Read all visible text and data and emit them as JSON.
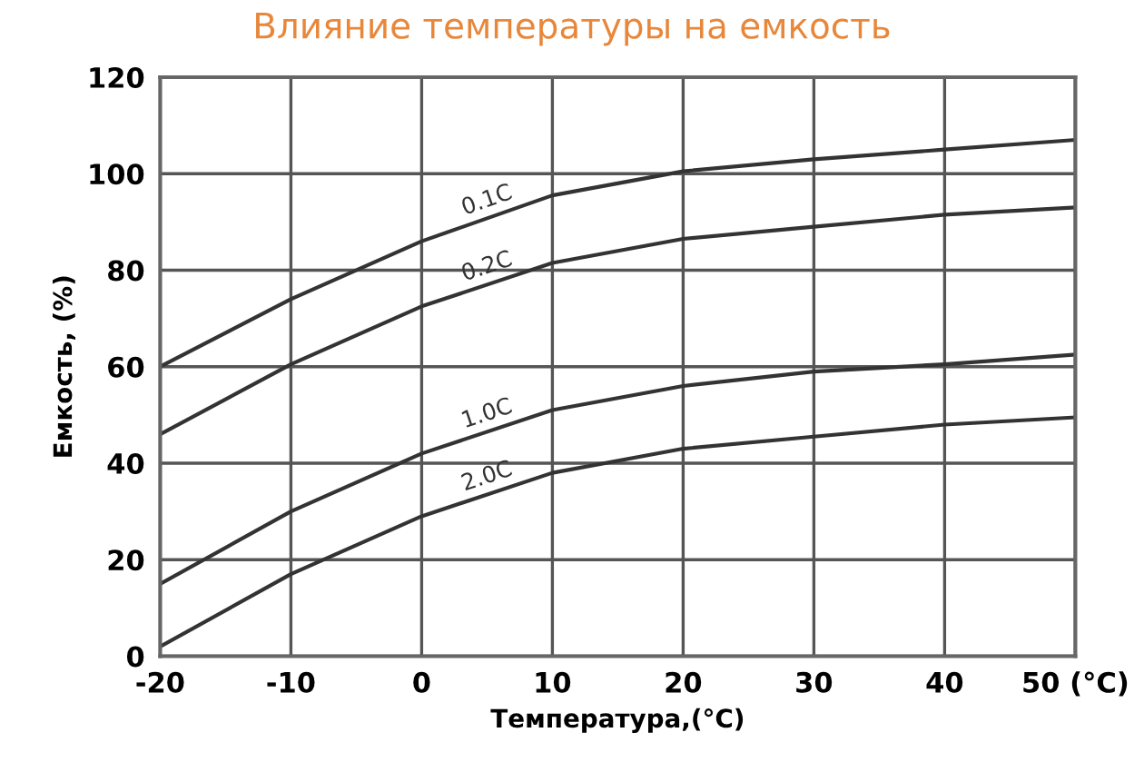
{
  "chart_data": {
    "type": "line",
    "title": "Влияние температуры на емкость",
    "xlabel": "Температура,(°C)",
    "ylabel": "Емкость, (%)",
    "x": [
      -20,
      -10,
      0,
      10,
      20,
      30,
      40,
      50
    ],
    "series": [
      {
        "name": "0.1C",
        "color": "#333333",
        "values": [
          60,
          74,
          86,
          95.5,
          100.5,
          103,
          105,
          107
        ]
      },
      {
        "name": "0.2C",
        "color": "#333333",
        "values": [
          46,
          60.5,
          72.5,
          81.5,
          86.5,
          89,
          91.5,
          93
        ]
      },
      {
        "name": "1.0C",
        "color": "#333333",
        "values": [
          15,
          30,
          42,
          51,
          56,
          59,
          60.5,
          62.5
        ]
      },
      {
        "name": "2.0C",
        "color": "#333333",
        "values": [
          2,
          17,
          29,
          38,
          43,
          45.5,
          48,
          49.5
        ]
      }
    ],
    "xlim": [
      -20,
      50
    ],
    "xticks": [
      -20,
      -10,
      0,
      10,
      20,
      30,
      40,
      {
        "value": 50,
        "label": "50 (°C)"
      }
    ],
    "ylim": [
      0,
      120
    ],
    "yticks": [
      0,
      20,
      40,
      60,
      80,
      100,
      120
    ],
    "grid": true,
    "legend": false,
    "marker": "none",
    "line_style": "solid"
  }
}
